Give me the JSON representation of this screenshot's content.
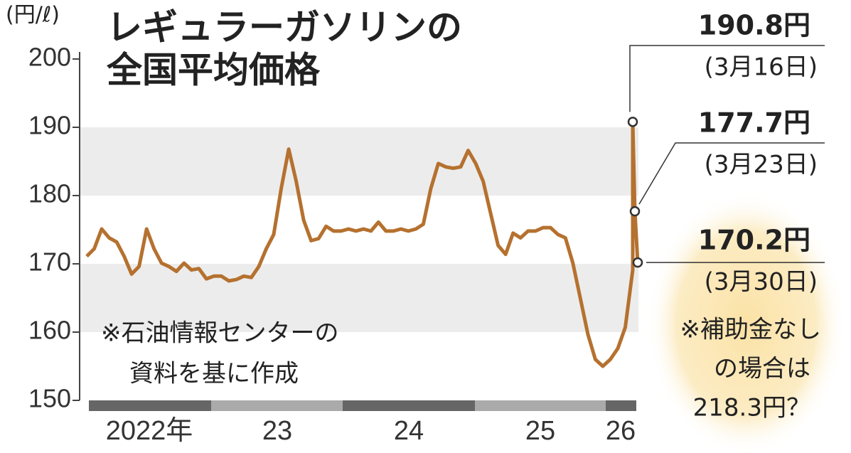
{
  "chart_data": {
    "type": "line",
    "title": [
      "レギュラーガソリンの",
      "全国平均価格"
    ],
    "unit": "(円/ℓ)",
    "ylim": [
      150,
      200
    ],
    "yticks": [
      150,
      160,
      170,
      180,
      190,
      200
    ],
    "year_labels": [
      "2022年",
      "23",
      "24",
      "25",
      "26"
    ],
    "series": [
      {
        "color": "#b5712f",
        "values": [
          171.1,
          172.2,
          175.1,
          173.8,
          173.2,
          171.1,
          168.5,
          169.6,
          175.1,
          172.2,
          170.1,
          169.6,
          168.9,
          170.1,
          169.1,
          169.3,
          167.8,
          168.2,
          168.2,
          167.5,
          167.7,
          168.2,
          168.0,
          169.6,
          172.2,
          174.3,
          181.0,
          186.8,
          182.1,
          176.4,
          173.4,
          173.7,
          175.5,
          174.8,
          174.8,
          175.1,
          174.8,
          175.1,
          174.8,
          176.1,
          174.8,
          174.8,
          175.1,
          174.8,
          175.1,
          175.8,
          181.0,
          184.7,
          184.2,
          184.0,
          184.2,
          186.6,
          184.7,
          182.1,
          177.4,
          172.7,
          171.4,
          174.5,
          173.8,
          174.8,
          174.8,
          175.3,
          175.3,
          174.3,
          173.8,
          170.1,
          164.9,
          159.7,
          156.0,
          155.0,
          156.0,
          157.6,
          160.7,
          169.1,
          190.8,
          177.7,
          170.2
        ]
      }
    ],
    "callouts": [
      {
        "label": "190.8円",
        "date": "(3月16日)"
      },
      {
        "label": "177.7円",
        "date": "(3月23日)"
      },
      {
        "label": "170.2円",
        "date": "(3月30日)"
      }
    ],
    "notes": [
      [
        "※石油情報センターの",
        "資料を基に作成"
      ],
      [
        "※補助金なし",
        "の場合は",
        "218.3円？"
      ]
    ]
  }
}
